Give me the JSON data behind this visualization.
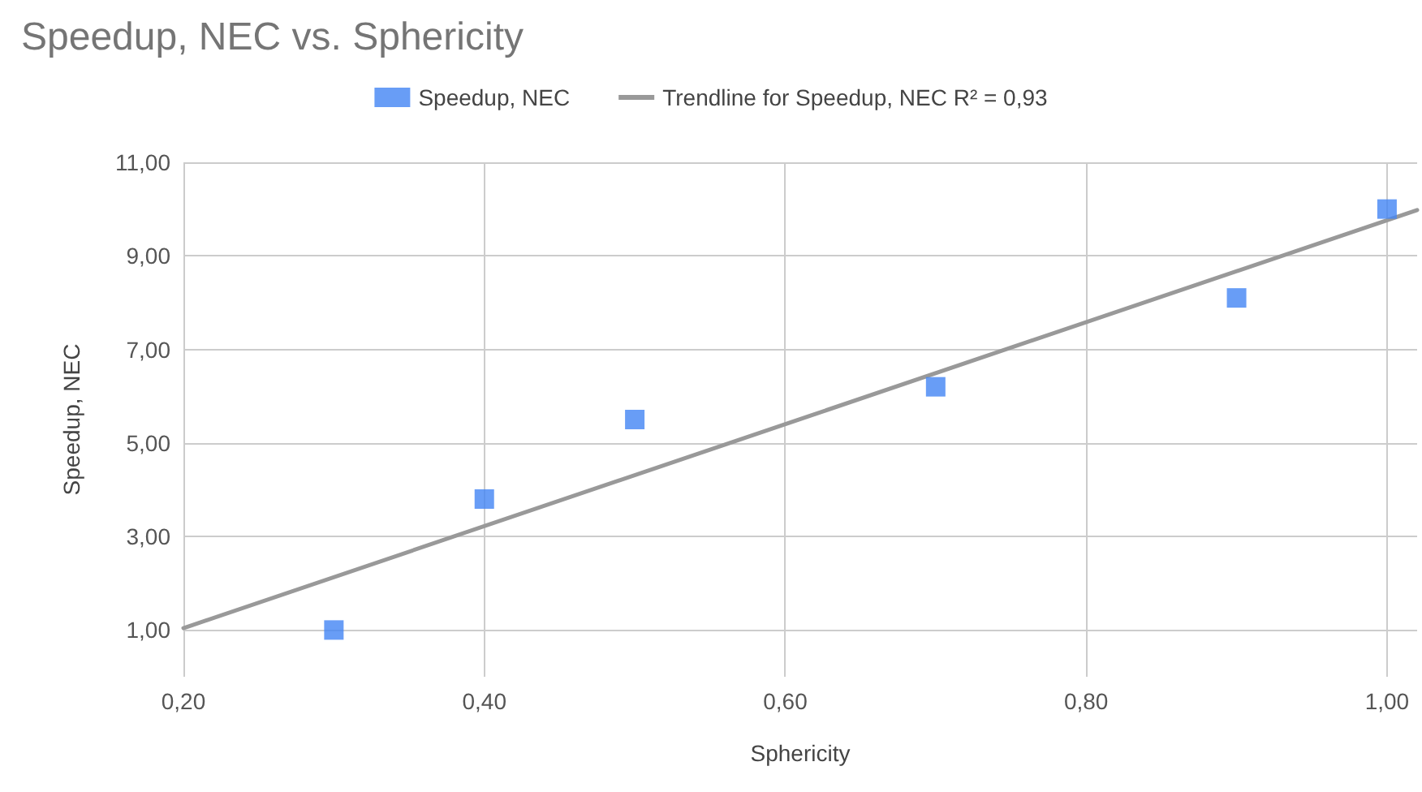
{
  "chart_data": {
    "type": "scatter",
    "title": "Speedup, NEC vs. Sphericity",
    "xlabel": "Sphericity",
    "ylabel": "Speedup, NEC",
    "x": [
      0.3,
      0.4,
      0.5,
      0.7,
      0.9,
      1.0
    ],
    "series": [
      {
        "name": "Speedup, NEC",
        "color": "#4285f4",
        "marker": "square",
        "values": [
          1.0,
          3.8,
          5.5,
          6.2,
          8.1,
          10.0
        ]
      },
      {
        "name": "Trendline for Speedup, NEC R² = 0,93",
        "type": "line",
        "color": "#999999",
        "marker": "none",
        "x": [
          0.2,
          1.02
        ],
        "values": [
          1.04,
          9.98
        ]
      }
    ],
    "xlim": [
      0.2,
      1.02
    ],
    "xticks": [
      {
        "value": 0.2,
        "label": "0,20"
      },
      {
        "value": 0.4,
        "label": "0,40"
      },
      {
        "value": 0.6,
        "label": "0,60"
      },
      {
        "value": 0.8,
        "label": "0,80"
      },
      {
        "value": 1.0,
        "label": "1,00"
      }
    ],
    "ylim": [
      0,
      11
    ],
    "yticks": [
      {
        "value": 1,
        "label": "1,00"
      },
      {
        "value": 3,
        "label": "3,00"
      },
      {
        "value": 5,
        "label": "5,00"
      },
      {
        "value": 7,
        "label": "7,00"
      },
      {
        "value": 9,
        "label": "9,00"
      },
      {
        "value": 11,
        "label": "11,00"
      }
    ],
    "grid": true,
    "legend": "top"
  }
}
